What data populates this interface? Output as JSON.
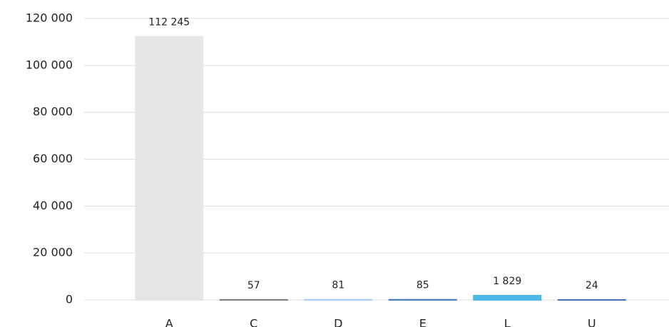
{
  "chart_data": {
    "type": "bar",
    "categories": [
      "A",
      "C",
      "D",
      "E",
      "L",
      "U"
    ],
    "values": [
      112245,
      57,
      81,
      85,
      1829,
      24
    ],
    "value_labels": [
      "112 245",
      "57",
      "81",
      "85",
      "1 829",
      "24"
    ],
    "colors": [
      "#e6e6e6",
      "#7f7f7f",
      "#a9cdf0",
      "#4a7fc1",
      "#4db8e8",
      "#4a6fc1"
    ],
    "ylim": [
      0,
      120000
    ],
    "yticks": [
      0,
      {
        "value": 20000,
        "label": "20 000"
      },
      {
        "value": 40000,
        "label": "40 000"
      },
      {
        "value": 60000,
        "label": "60 000"
      },
      {
        "value": 80000,
        "label": "80 000"
      },
      {
        "value": 100000,
        "label": "100 000"
      },
      {
        "value": 120000,
        "label": "120 000"
      }
    ],
    "grid": true
  }
}
